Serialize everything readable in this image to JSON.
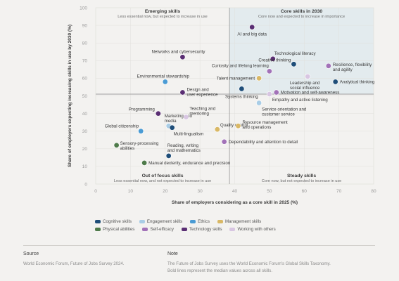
{
  "chart_data": {
    "type": "scatter",
    "xlabel": "Share of employers considering as a core skill in 2025 (%)",
    "ylabel": "Share of employers expecting increasing skills in use by 2030 (%)",
    "xlim": [
      0,
      80
    ],
    "ylim": [
      0,
      100
    ],
    "xticks": [
      0,
      10,
      20,
      30,
      40,
      50,
      60,
      70,
      80
    ],
    "yticks": [
      0,
      10,
      20,
      30,
      40,
      50,
      60,
      70,
      80,
      90,
      100
    ],
    "median_x": 38.5,
    "median_y": 51,
    "quadrants": [
      {
        "title": "Emerging skills",
        "subtitle": "Less essential now, but expected to increase in use"
      },
      {
        "title": "Core skills in 2030",
        "subtitle": "Core now and expected to increase in importance"
      },
      {
        "title": "Out of focus skills",
        "subtitle": "Less essential now, and not expected to increase in use"
      },
      {
        "title": "Steady skills",
        "subtitle": "Core now, but not expected to increase in use"
      }
    ],
    "categories": [
      {
        "name": "Cognitive skills",
        "color": "#1f4e79"
      },
      {
        "name": "Engagement skills",
        "color": "#a9cde6"
      },
      {
        "name": "Ethics",
        "color": "#4a9bd4"
      },
      {
        "name": "Management skills",
        "color": "#d9b866"
      },
      {
        "name": "Physical abilities",
        "color": "#4e7a4a"
      },
      {
        "name": "Self-efficacy",
        "color": "#a272b8"
      },
      {
        "name": "Technology skills",
        "color": "#5a2e73"
      },
      {
        "name": "Working with others",
        "color": "#d8c6e2"
      }
    ],
    "points": [
      {
        "label": "AI and big data",
        "x": 45,
        "y": 89,
        "category": "Technology skills"
      },
      {
        "label": "Technological literacy",
        "x": 51,
        "y": 71,
        "category": "Technology skills"
      },
      {
        "label": "Creative thinking",
        "x": 57,
        "y": 68,
        "category": "Cognitive skills"
      },
      {
        "label": "Resilience, flexibility and agility",
        "x": 67,
        "y": 67,
        "category": "Self-efficacy"
      },
      {
        "label": "Curiosity and lifelong learning",
        "x": 50,
        "y": 64,
        "category": "Self-efficacy"
      },
      {
        "label": "Talent management",
        "x": 47,
        "y": 60,
        "category": "Management skills"
      },
      {
        "label": "Leadership and social influence",
        "x": 61,
        "y": 61,
        "category": "Working with others"
      },
      {
        "label": "Analytical thinking",
        "x": 69,
        "y": 58,
        "category": "Cognitive skills"
      },
      {
        "label": "Systems thinking",
        "x": 42,
        "y": 54,
        "category": "Cognitive skills"
      },
      {
        "label": "Motivation and self-awareness",
        "x": 52,
        "y": 52,
        "category": "Self-efficacy"
      },
      {
        "label": "Empathy and active listening",
        "x": 50,
        "y": 51,
        "category": "Working with others"
      },
      {
        "label": "Service orientation and customer service",
        "x": 47,
        "y": 46,
        "category": "Engagement skills"
      },
      {
        "label": "Networks and cybersecurity",
        "x": 25,
        "y": 72,
        "category": "Technology skills"
      },
      {
        "label": "Environmental stewardship",
        "x": 20,
        "y": 58,
        "category": "Ethics"
      },
      {
        "label": "Design and user experience",
        "x": 25,
        "y": 52,
        "category": "Technology skills"
      },
      {
        "label": "Programming",
        "x": 18,
        "y": 40,
        "category": "Technology skills"
      },
      {
        "label": "Marketing and media",
        "x": 21,
        "y": 33,
        "category": "Engagement skills"
      },
      {
        "label": "Teaching and mentoring",
        "x": 26,
        "y": 38,
        "category": "Working with others"
      },
      {
        "label": "Global citizenship",
        "x": 13,
        "y": 30,
        "category": "Ethics"
      },
      {
        "label": "Multi-lingualism",
        "x": 22,
        "y": 32,
        "category": "Cognitive skills"
      },
      {
        "label": "Quality control",
        "x": 35,
        "y": 31,
        "category": "Management skills"
      },
      {
        "label": "Resource management and operations",
        "x": 41,
        "y": 33,
        "category": "Management skills"
      },
      {
        "label": "Dependability and attention to detail",
        "x": 37,
        "y": 24,
        "category": "Self-efficacy"
      },
      {
        "label": "Sensory-processing abilities",
        "x": 6,
        "y": 22,
        "category": "Physical abilities"
      },
      {
        "label": "Reading, writing and mathematics",
        "x": 21,
        "y": 16,
        "category": "Cognitive skills"
      },
      {
        "label": "Manual dexterity, endurance and precision",
        "x": 14,
        "y": 12,
        "category": "Physical abilities"
      }
    ]
  },
  "footer": {
    "source_title": "Source",
    "source_text": "World Economic Forum, Future of Jobs Survey 2024.",
    "note_title": "Note",
    "note_text_1": "The Future of Jobs Survey uses the World Economic Forum's Global Skills Taxonomy.",
    "note_text_2": "Bold lines represent the median values across all skills."
  }
}
